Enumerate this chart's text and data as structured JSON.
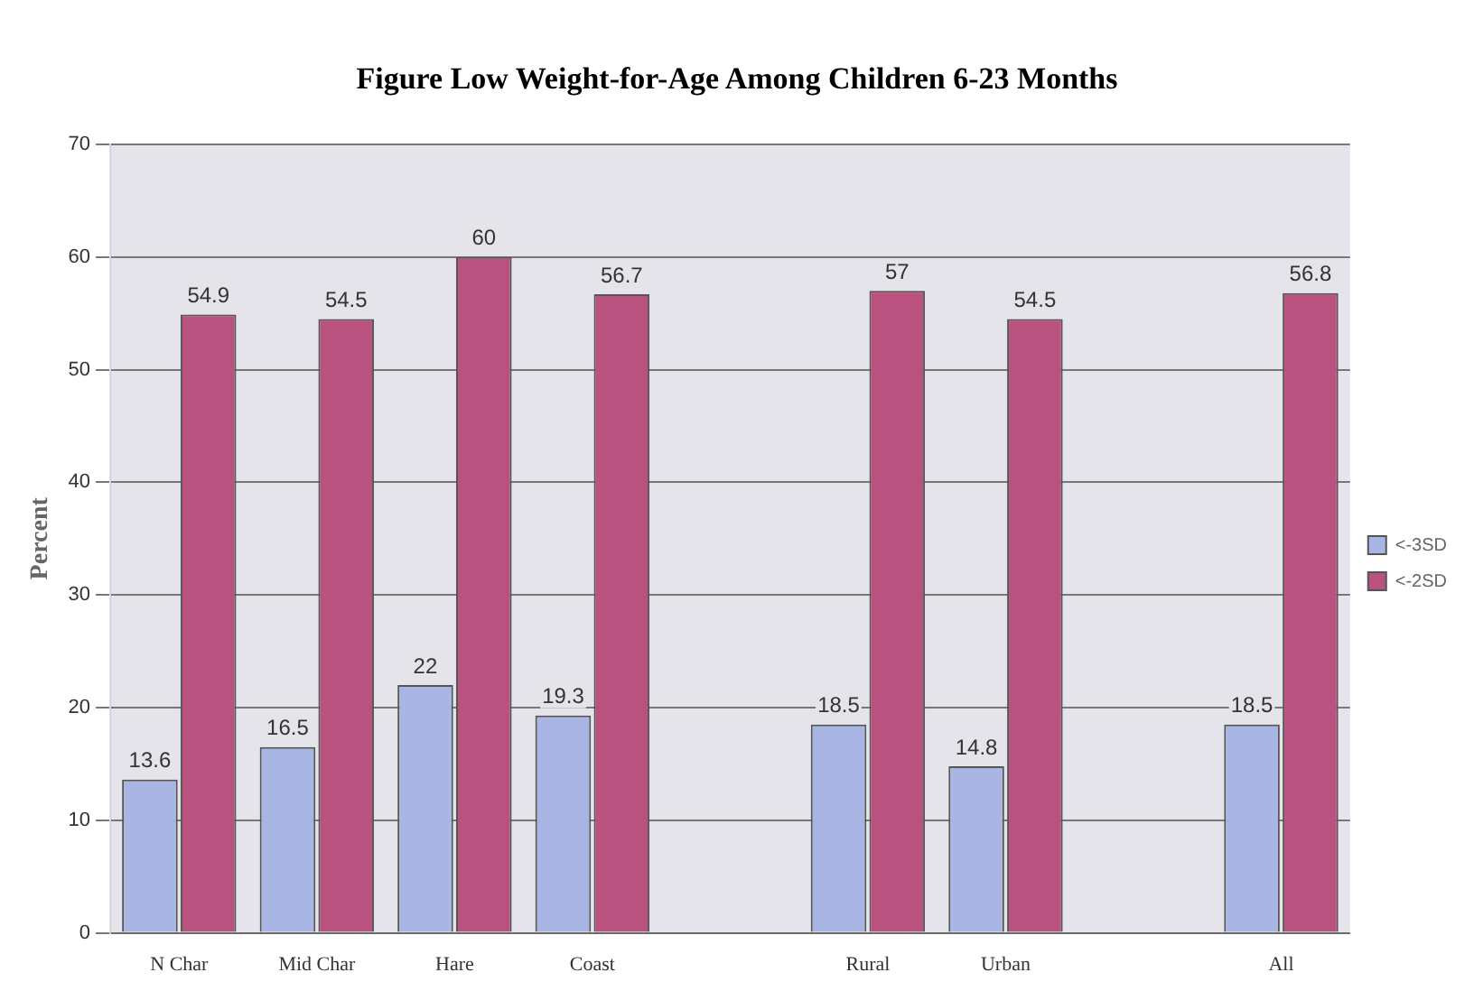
{
  "chart_data": {
    "type": "bar",
    "title": "Figure    Low Weight-for-Age Among Children 6-23 Months",
    "ylabel": "Percent",
    "categories": [
      "N Char",
      "Mid Char",
      "Hare",
      "Coast",
      null,
      "Rural",
      "Urban",
      null,
      "All"
    ],
    "series": [
      {
        "name": "<-3SD",
        "color": "#a9b5e3",
        "values": [
          13.6,
          16.5,
          22,
          19.3,
          null,
          18.5,
          14.8,
          null,
          18.5
        ]
      },
      {
        "name": "<-2SD",
        "color": "#b9527e",
        "values": [
          54.9,
          54.5,
          60,
          56.7,
          null,
          57,
          54.5,
          null,
          56.8
        ]
      }
    ],
    "ylim": [
      0,
      70
    ],
    "yticks": [
      0,
      10,
      20,
      30,
      40,
      50,
      60,
      70
    ],
    "grid": "y",
    "legend": "right",
    "data_labels": true
  }
}
